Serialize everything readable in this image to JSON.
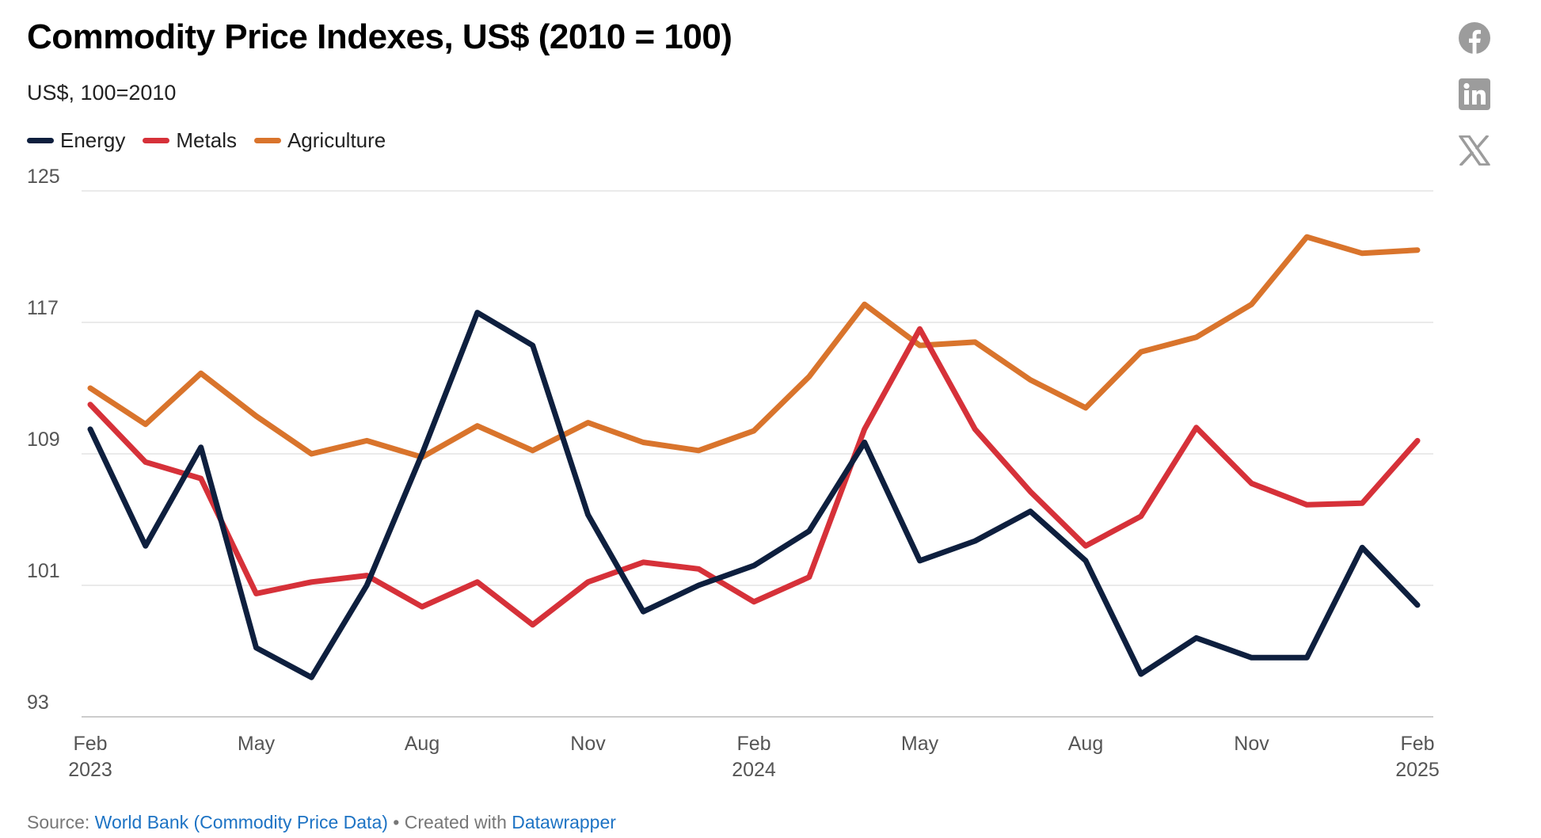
{
  "header": {
    "title": "Commodity Price Indexes, US$ (2010 = 100)",
    "subtitle": "US$, 100=2010"
  },
  "legend": [
    {
      "label": "Energy",
      "color": "#0e1f3e"
    },
    {
      "label": "Metals",
      "color": "#d63139"
    },
    {
      "label": "Agriculture",
      "color": "#d9742c"
    }
  ],
  "share_icons": [
    "facebook-icon",
    "linkedin-icon",
    "x-icon"
  ],
  "footer": {
    "source_prefix": "Source: ",
    "source_link": "World Bank (Commodity Price Data)",
    "separator": " • Created with ",
    "tool_link": "Datawrapper"
  },
  "chart_data": {
    "type": "line",
    "title": "Commodity Price Indexes, US$ (2010 = 100)",
    "subtitle": "US$, 100=2010",
    "xlabel": "",
    "ylabel": "",
    "ylim": [
      93,
      125
    ],
    "yticks": [
      93,
      101,
      109,
      117,
      125
    ],
    "x": [
      "2023-02",
      "2023-03",
      "2023-04",
      "2023-05",
      "2023-06",
      "2023-07",
      "2023-08",
      "2023-09",
      "2023-10",
      "2023-11",
      "2023-12",
      "2024-01",
      "2024-02",
      "2024-03",
      "2024-04",
      "2024-05",
      "2024-06",
      "2024-07",
      "2024-08",
      "2024-09",
      "2024-10",
      "2024-11",
      "2024-12",
      "2025-01",
      "2025-02"
    ],
    "xticks": [
      {
        "index": 0,
        "month": "Feb",
        "year": "2023"
      },
      {
        "index": 3,
        "month": "May",
        "year": ""
      },
      {
        "index": 6,
        "month": "Aug",
        "year": ""
      },
      {
        "index": 9,
        "month": "Nov",
        "year": ""
      },
      {
        "index": 12,
        "month": "Feb",
        "year": "2024"
      },
      {
        "index": 15,
        "month": "May",
        "year": ""
      },
      {
        "index": 18,
        "month": "Aug",
        "year": ""
      },
      {
        "index": 21,
        "month": "Nov",
        "year": ""
      },
      {
        "index": 24,
        "month": "Feb",
        "year": "2025"
      }
    ],
    "grid": true,
    "series": [
      {
        "name": "Energy",
        "color": "#0e1f3e",
        "values": [
          110.5,
          103.4,
          109.4,
          97.2,
          95.4,
          101.0,
          109.0,
          117.6,
          115.6,
          105.3,
          99.4,
          101.0,
          102.2,
          104.3,
          109.7,
          102.5,
          103.7,
          105.5,
          102.5,
          95.6,
          97.8,
          96.6,
          96.6,
          103.3,
          99.8
        ]
      },
      {
        "name": "Metals",
        "color": "#d63139",
        "values": [
          112.0,
          108.5,
          107.5,
          100.5,
          101.2,
          101.6,
          99.7,
          101.2,
          98.6,
          101.2,
          102.4,
          102.0,
          100.0,
          101.5,
          110.5,
          116.6,
          110.5,
          106.7,
          103.4,
          105.2,
          110.6,
          107.2,
          105.9,
          106.0,
          109.8
        ]
      },
      {
        "name": "Agriculture",
        "color": "#d9742c",
        "values": [
          113.0,
          110.8,
          113.9,
          111.3,
          109.0,
          109.8,
          108.8,
          110.7,
          109.2,
          110.9,
          109.7,
          109.2,
          110.4,
          113.7,
          118.1,
          115.6,
          115.8,
          113.5,
          111.8,
          115.2,
          116.1,
          118.1,
          122.2,
          121.2,
          121.4
        ]
      }
    ]
  }
}
